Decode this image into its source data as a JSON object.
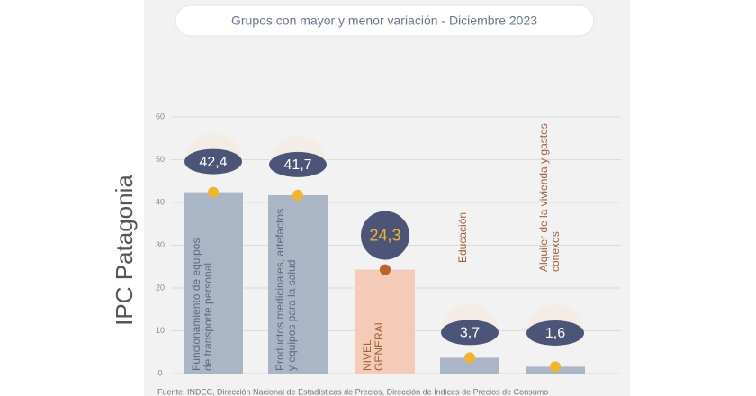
{
  "chart_data": {
    "type": "bar",
    "title": "Grupos con mayor y menor variación - Diciembre 2023",
    "ylabel": "IPC Patagonia",
    "categories": [
      "Funcionamiento de equipos de transporte personal",
      "Productos medicinales, artefactos y equipos para la salud",
      "NIVEL GENERAL",
      "Educación",
      "Alquiler de la vivienda y gastos conexos"
    ],
    "values": [
      42.4,
      41.7,
      24.3,
      3.7,
      1.6
    ],
    "value_labels": [
      "42,4",
      "41,7",
      "24,3",
      "3,7",
      "1,6"
    ],
    "colors": [
      "#aab5c6",
      "#aab5c6",
      "#f3cbb6",
      "#aab5c6",
      "#aab5c6"
    ],
    "ylim": [
      0,
      60
    ],
    "yticks": [
      0,
      10,
      20,
      30,
      40,
      50,
      60
    ],
    "grid": true,
    "source": "Fuente: INDEC, Dirección Nacional de Estadísticas de Precios, Dirección de Índices de Precios de Consumo"
  }
}
